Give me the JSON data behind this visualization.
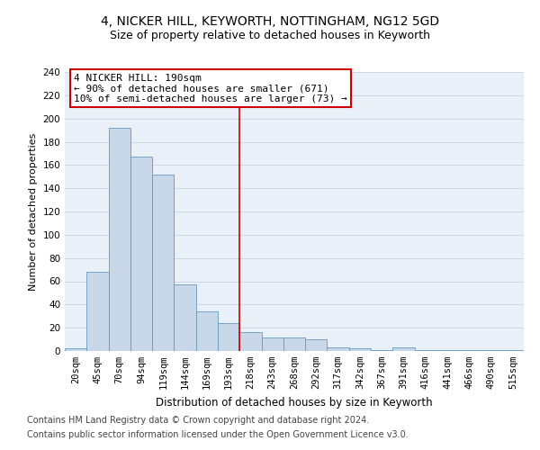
{
  "title1": "4, NICKER HILL, KEYWORTH, NOTTINGHAM, NG12 5GD",
  "title2": "Size of property relative to detached houses in Keyworth",
  "xlabel": "Distribution of detached houses by size in Keyworth",
  "ylabel": "Number of detached properties",
  "categories": [
    "20sqm",
    "45sqm",
    "70sqm",
    "94sqm",
    "119sqm",
    "144sqm",
    "169sqm",
    "193sqm",
    "218sqm",
    "243sqm",
    "268sqm",
    "292sqm",
    "317sqm",
    "342sqm",
    "367sqm",
    "391sqm",
    "416sqm",
    "441sqm",
    "466sqm",
    "490sqm",
    "515sqm"
  ],
  "values": [
    2,
    68,
    192,
    167,
    152,
    57,
    34,
    24,
    16,
    12,
    12,
    10,
    3,
    2,
    1,
    3,
    1,
    1,
    1,
    1,
    1
  ],
  "bar_color": "#c8d8e8",
  "bar_edge_color": "#6699bb",
  "vline_color": "#cc0000",
  "annotation_text": "4 NICKER HILL: 190sqm\n← 90% of detached houses are smaller (671)\n10% of semi-detached houses are larger (73) →",
  "annotation_box_color": "#cc0000",
  "ylim": [
    0,
    240
  ],
  "yticks": [
    0,
    20,
    40,
    60,
    80,
    100,
    120,
    140,
    160,
    180,
    200,
    220,
    240
  ],
  "grid_color": "#c8d8e8",
  "background_color": "#eaf0f8",
  "footer1": "Contains HM Land Registry data © Crown copyright and database right 2024.",
  "footer2": "Contains public sector information licensed under the Open Government Licence v3.0.",
  "title1_fontsize": 10,
  "title2_fontsize": 9,
  "xlabel_fontsize": 8.5,
  "ylabel_fontsize": 8,
  "tick_fontsize": 7.5,
  "annotation_fontsize": 8,
  "footer_fontsize": 7
}
